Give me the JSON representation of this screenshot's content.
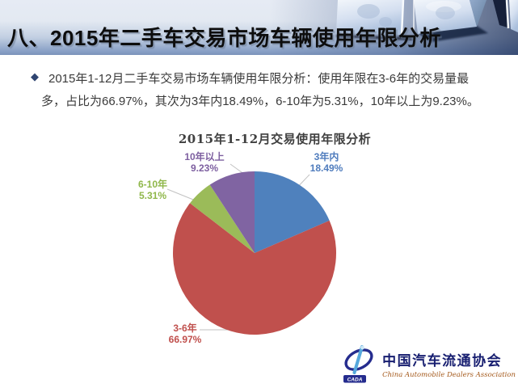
{
  "header": {
    "title": "八、2015年二手车交易市场车辆使用年限分析"
  },
  "summary": {
    "bullet_icon": "◆",
    "line1": "2015年1-12月二手车交易市场车辆使用年限分析：使用年限在3-6年的交易量最",
    "line2": "多，占比为66.97%，其次为3年内18.49%，6-10年为5.31%，10年以上为9.23%。"
  },
  "chart_data": {
    "type": "pie",
    "title": "2015年1-12月交易使用年限分析",
    "start_angle_deg": 0,
    "direction": "clockwise",
    "legend_position": "none",
    "labels_outside": true,
    "leader_line_color": "#c2c2c2",
    "slices": [
      {
        "id": "within-3-years",
        "label": "3年内",
        "value": 18.49,
        "pct_label": "18.49%",
        "color": "#4f81bd",
        "label_color": "#4f7cbd"
      },
      {
        "id": "3-6-years",
        "label": "3-6年",
        "value": 66.97,
        "pct_label": "66.97%",
        "color": "#c0504d",
        "label_color": "#c0504d"
      },
      {
        "id": "6-10-years",
        "label": "6-10年",
        "value": 5.31,
        "pct_label": "5.31%",
        "color": "#9bbb59",
        "label_color": "#8fb74a"
      },
      {
        "id": "over-10-years",
        "label": "10年以上",
        "value": 9.23,
        "pct_label": "9.23%",
        "color": "#8064a2",
        "label_color": "#7d5fa0"
      }
    ]
  },
  "footer": {
    "logo_mark_text": "CADA",
    "org_name_cn": "中国汽车流通协会",
    "org_name_en": "China Automobile Dealers Association",
    "logo_blue": "#252c8e",
    "logo_light_blue": "#56a8dc",
    "org_en_color": "#a4591b"
  }
}
